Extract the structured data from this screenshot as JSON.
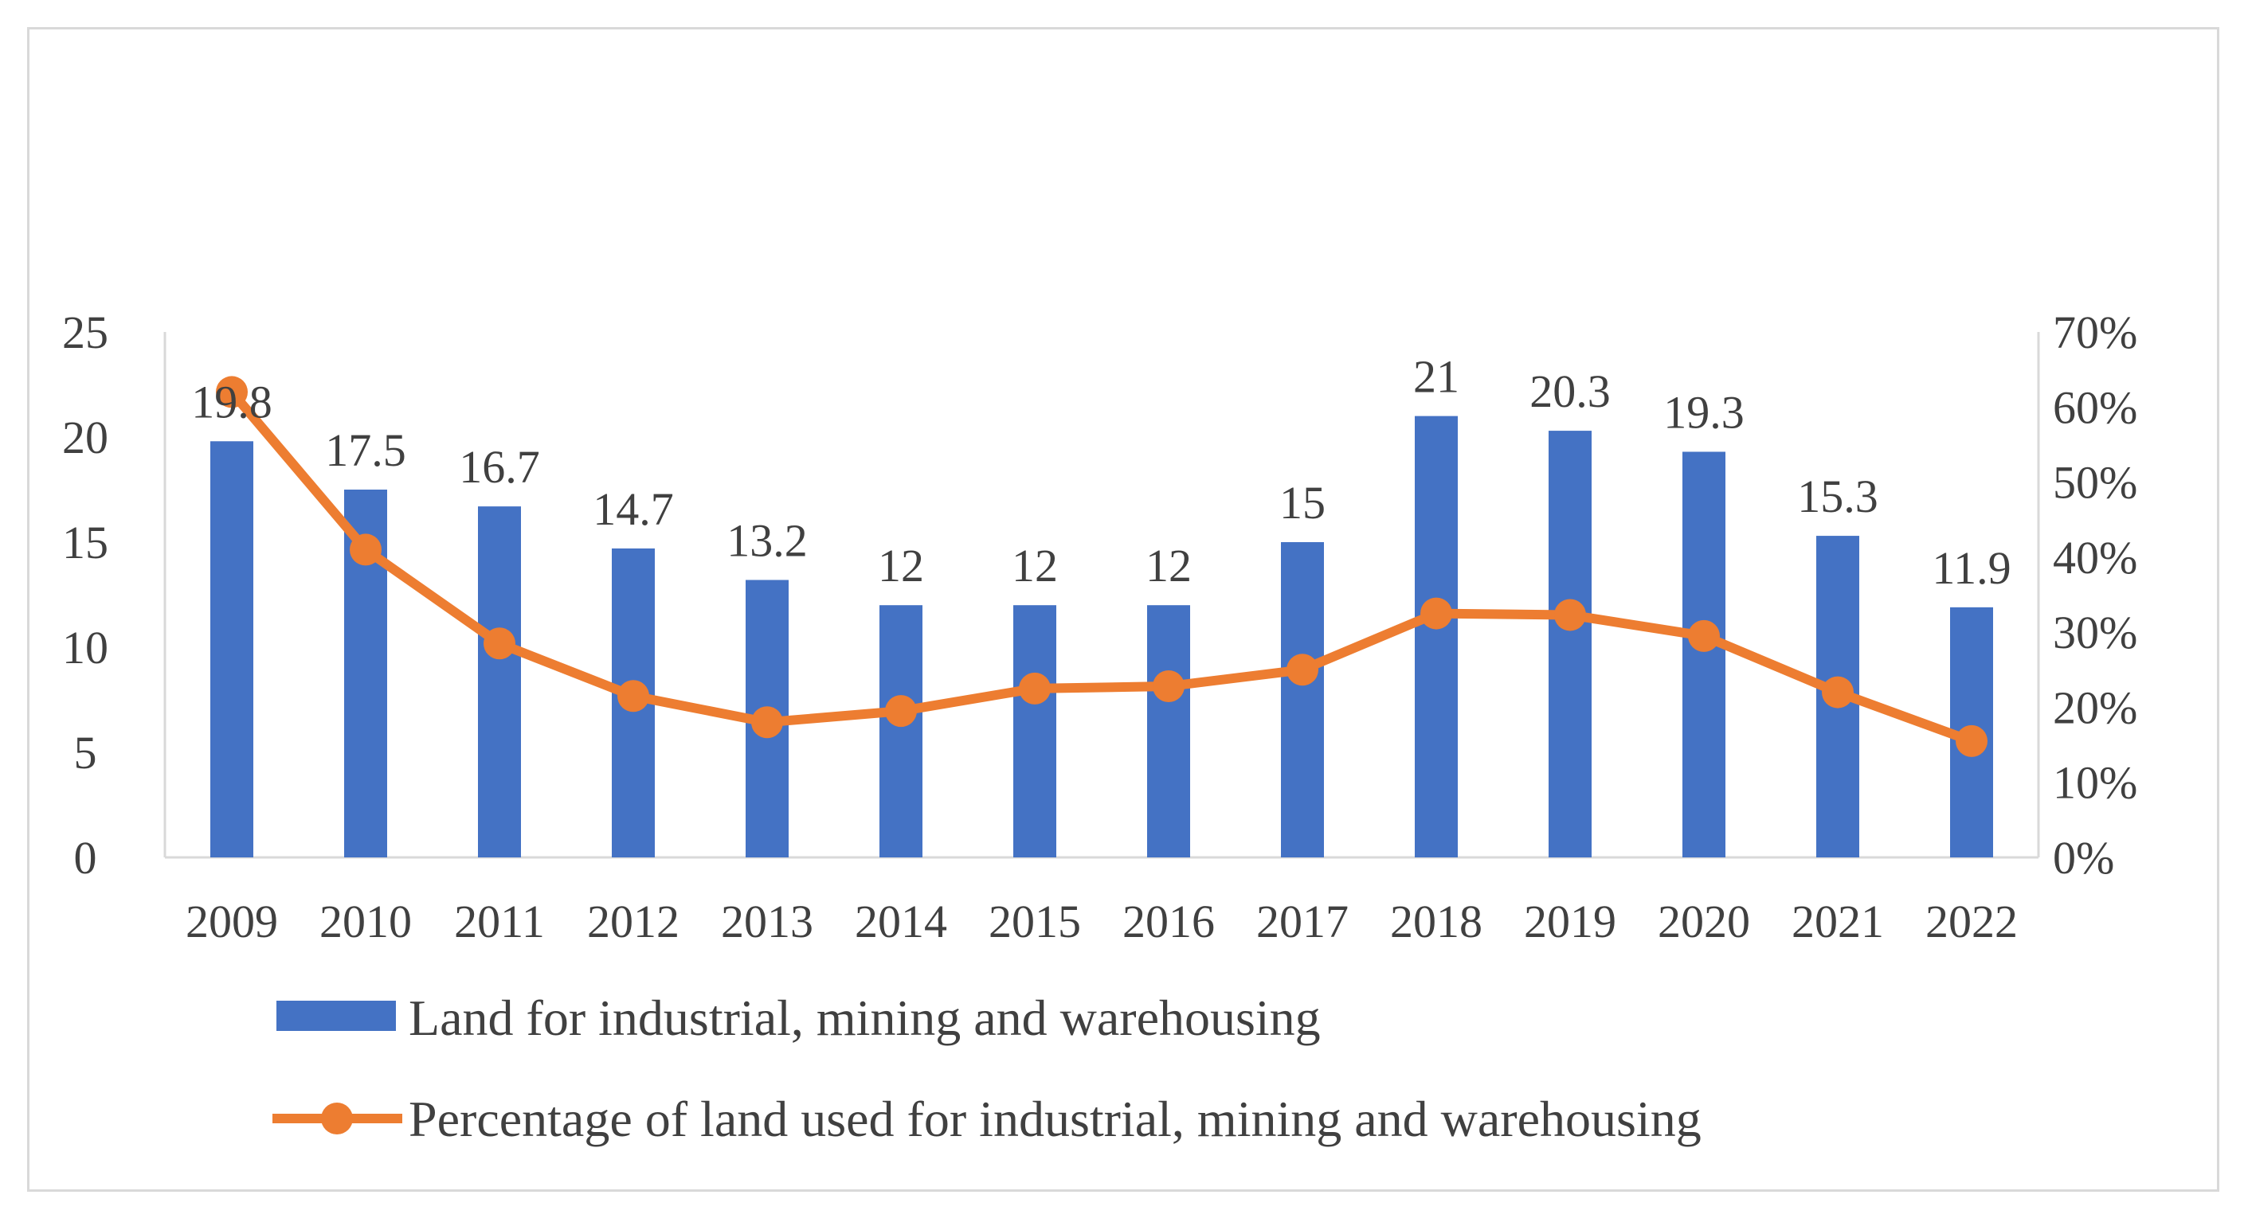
{
  "chart_data": {
    "type": "bar",
    "categories": [
      "2009",
      "2010",
      "2011",
      "2012",
      "2013",
      "2014",
      "2015",
      "2016",
      "2017",
      "2018",
      "2019",
      "2020",
      "2021",
      "2022"
    ],
    "series": [
      {
        "name": "Land for industrial, mining and warehousing",
        "type": "bar",
        "axis": "left",
        "color": "#4472C4",
        "values": [
          19.8,
          17.5,
          16.7,
          14.7,
          13.2,
          12,
          12,
          12,
          15,
          21,
          20.3,
          19.3,
          15.3,
          11.9
        ],
        "data_labels": [
          "19.8",
          "17.5",
          "16.7",
          "14.7",
          "13.2",
          "12",
          "12",
          "12",
          "15",
          "21",
          "20.3",
          "19.3",
          "15.3",
          "11.9"
        ]
      },
      {
        "name": "Percentage of land used for industrial, mining and warehousing",
        "type": "line",
        "axis": "right",
        "color": "#ED7D31",
        "values": [
          0.62,
          0.41,
          0.285,
          0.215,
          0.18,
          0.195,
          0.225,
          0.228,
          0.25,
          0.325,
          0.323,
          0.295,
          0.22,
          0.155
        ]
      }
    ],
    "y_left": {
      "min": 0,
      "max": 25,
      "ticks": [
        "0",
        "5",
        "10",
        "15",
        "20",
        "25"
      ]
    },
    "y_right": {
      "min": 0,
      "max": 0.7,
      "ticks": [
        "0%",
        "10%",
        "20%",
        "30%",
        "40%",
        "50%",
        "60%",
        "70%"
      ]
    },
    "legend_position": "bottom",
    "grid": false
  }
}
